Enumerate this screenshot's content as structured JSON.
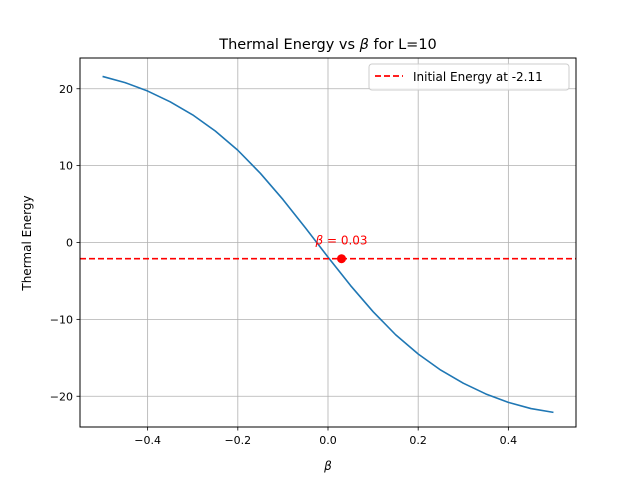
{
  "chart_data": {
    "type": "line",
    "title": "Thermal Energy vs β for L=10",
    "title_prefix": "Thermal Energy vs ",
    "title_symbol": "β",
    "title_suffix": " for L=10",
    "xlabel": "β",
    "ylabel": "Thermal Energy",
    "xlim": [
      -0.55,
      0.55
    ],
    "ylim": [
      -24,
      24
    ],
    "xticks": [
      -0.4,
      -0.2,
      0.0,
      0.2,
      0.4
    ],
    "xtick_labels": [
      "−0.4",
      "−0.2",
      "0.0",
      "0.2",
      "0.4"
    ],
    "yticks": [
      -20,
      -10,
      0,
      10,
      20
    ],
    "ytick_labels": [
      "−20",
      "−10",
      "0",
      "10",
      "20"
    ],
    "grid": true,
    "legend_position": "top-right",
    "series": [
      {
        "color": "#1f77b4",
        "x": [
          -0.5,
          -0.45,
          -0.4,
          -0.35,
          -0.3,
          -0.25,
          -0.2,
          -0.15,
          -0.1,
          -0.05,
          0.0,
          0.05,
          0.1,
          0.15,
          0.2,
          0.25,
          0.3,
          0.35,
          0.4,
          0.45,
          0.5
        ],
        "y": [
          21.6,
          20.8,
          19.7,
          18.3,
          16.6,
          14.5,
          12.0,
          9.0,
          5.6,
          1.9,
          -1.9,
          -5.6,
          -9.0,
          -12.0,
          -14.5,
          -16.6,
          -18.3,
          -19.7,
          -20.8,
          -21.6,
          -22.1
        ]
      }
    ],
    "reference_line": {
      "label": "Initial Energy at -2.11",
      "y": -2.11,
      "color": "#ff0000",
      "style": "dashed"
    },
    "marker": {
      "x": 0.03,
      "y": -2.11,
      "color": "#ff0000"
    },
    "annotation": {
      "symbol": "β",
      "text": " = 0.03",
      "color": "#ff0000"
    }
  }
}
